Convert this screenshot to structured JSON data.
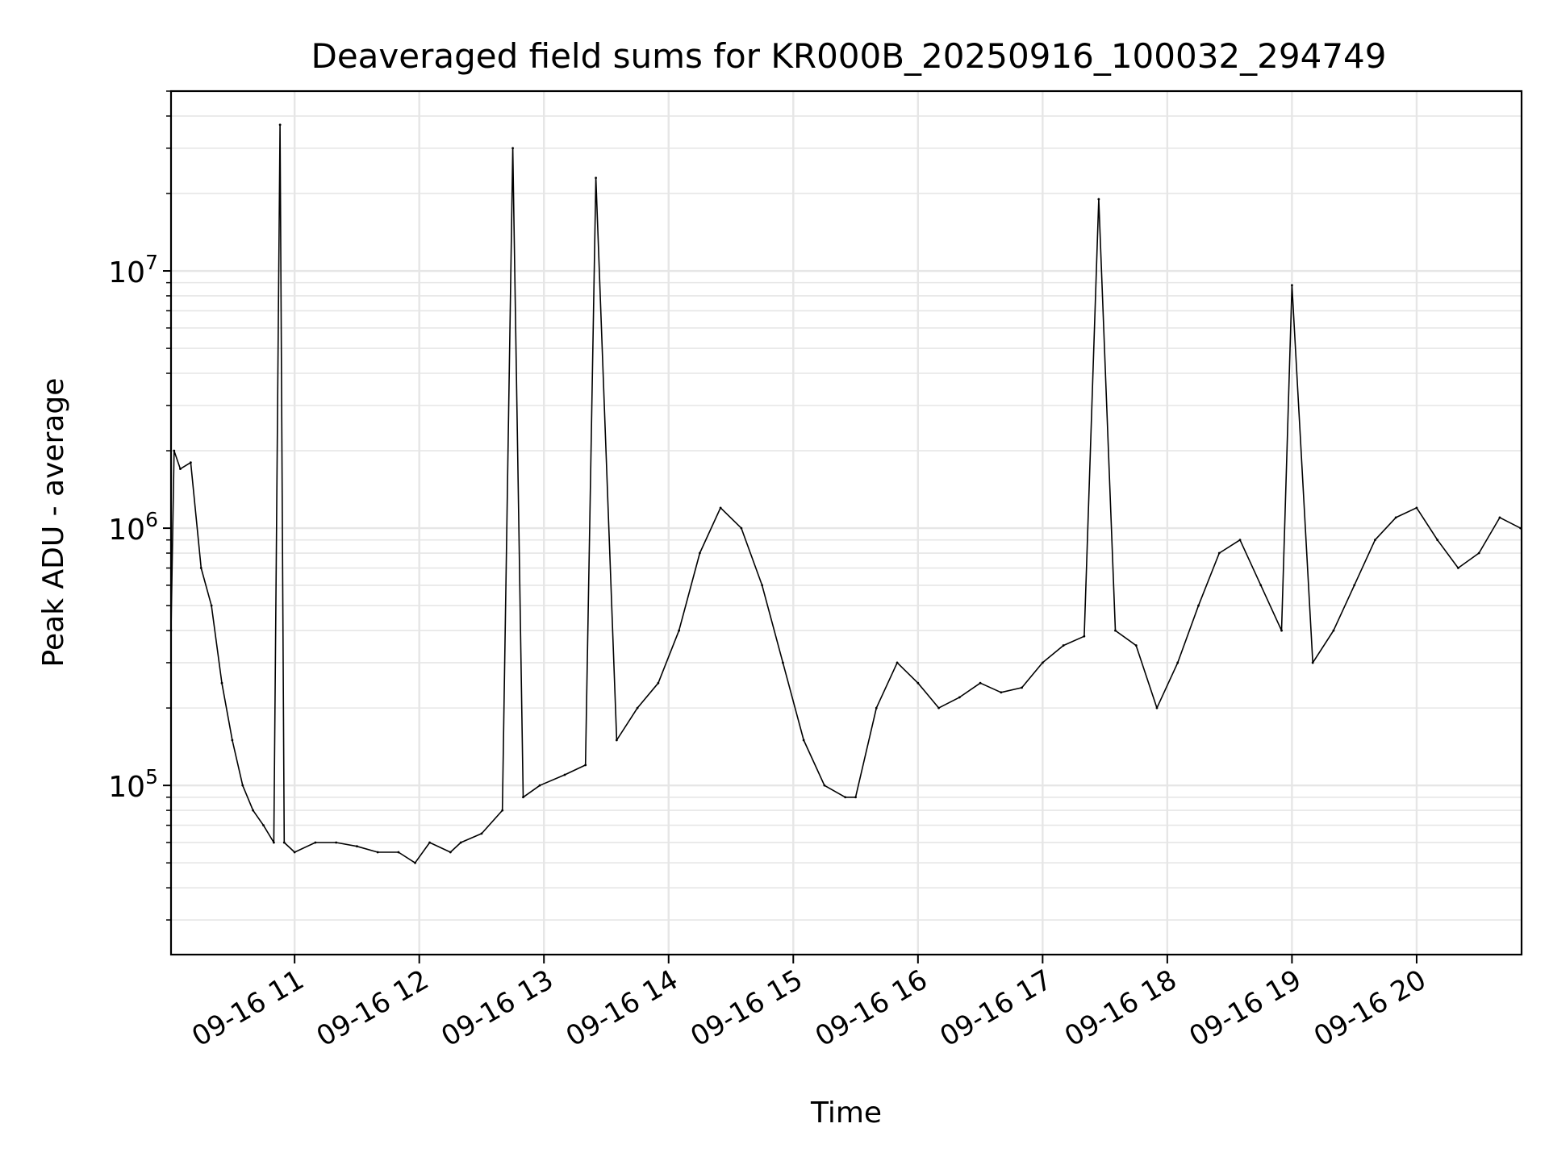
{
  "chart_data": {
    "type": "line",
    "title": "Deaveraged field sums for KR000B_20250916_100032_294749",
    "xlabel": "Time",
    "ylabel": "Peak ADU - average",
    "yscale": "log",
    "ylim": [
      22000,
      50000000
    ],
    "xlim": [
      "2025-09-16 10:00:32",
      "2025-09-16 20:50:30"
    ],
    "grid": true,
    "legend": "none",
    "line_color": "#000000",
    "x_ticks": [
      {
        "t": "2025-09-16 11:00",
        "label": "09-16 11"
      },
      {
        "t": "2025-09-16 12:00",
        "label": "09-16 12"
      },
      {
        "t": "2025-09-16 13:00",
        "label": "09-16 13"
      },
      {
        "t": "2025-09-16 14:00",
        "label": "09-16 14"
      },
      {
        "t": "2025-09-16 15:00",
        "label": "09-16 15"
      },
      {
        "t": "2025-09-16 16:00",
        "label": "09-16 16"
      },
      {
        "t": "2025-09-16 17:00",
        "label": "09-16 17"
      },
      {
        "t": "2025-09-16 18:00",
        "label": "09-16 18"
      },
      {
        "t": "2025-09-16 19:00",
        "label": "09-16 19"
      },
      {
        "t": "2025-09-16 20:00",
        "label": "09-16 20"
      }
    ],
    "y_ticks": [
      {
        "value": 100000,
        "base": "10",
        "exp": "5"
      },
      {
        "value": 1000000,
        "base": "10",
        "exp": "6"
      },
      {
        "value": 10000000,
        "base": "10",
        "exp": "7"
      }
    ],
    "series": [
      {
        "x": [
          "2025-09-16 10:00:32",
          "2025-09-16 10:02",
          "2025-09-16 10:05",
          "2025-09-16 10:10",
          "2025-09-16 10:15",
          "2025-09-16 10:20",
          "2025-09-16 10:25",
          "2025-09-16 10:30",
          "2025-09-16 10:35",
          "2025-09-16 10:40",
          "2025-09-16 10:45",
          "2025-09-16 10:50",
          "2025-09-16 10:53",
          "2025-09-16 10:55",
          "2025-09-16 11:00",
          "2025-09-16 11:10",
          "2025-09-16 11:20",
          "2025-09-16 11:30",
          "2025-09-16 11:40",
          "2025-09-16 11:50",
          "2025-09-16 11:58",
          "2025-09-16 12:05",
          "2025-09-16 12:15",
          "2025-09-16 12:20",
          "2025-09-16 12:30",
          "2025-09-16 12:40",
          "2025-09-16 12:45",
          "2025-09-16 12:50",
          "2025-09-16 12:58",
          "2025-09-16 13:10",
          "2025-09-16 13:20",
          "2025-09-16 13:25",
          "2025-09-16 13:35",
          "2025-09-16 13:45",
          "2025-09-16 13:55",
          "2025-09-16 14:05",
          "2025-09-16 14:15",
          "2025-09-16 14:25",
          "2025-09-16 14:35",
          "2025-09-16 14:45",
          "2025-09-16 14:55",
          "2025-09-16 15:05",
          "2025-09-16 15:15",
          "2025-09-16 15:25",
          "2025-09-16 15:30",
          "2025-09-16 15:40",
          "2025-09-16 15:50",
          "2025-09-16 16:00",
          "2025-09-16 16:10",
          "2025-09-16 16:20",
          "2025-09-16 16:30",
          "2025-09-16 16:40",
          "2025-09-16 16:50",
          "2025-09-16 17:00",
          "2025-09-16 17:10",
          "2025-09-16 17:20",
          "2025-09-16 17:27",
          "2025-09-16 17:35",
          "2025-09-16 17:45",
          "2025-09-16 17:55",
          "2025-09-16 18:05",
          "2025-09-16 18:15",
          "2025-09-16 18:25",
          "2025-09-16 18:35",
          "2025-09-16 18:45",
          "2025-09-16 18:55",
          "2025-09-16 19:00",
          "2025-09-16 19:10",
          "2025-09-16 19:20",
          "2025-09-16 19:30",
          "2025-09-16 19:40",
          "2025-09-16 19:50",
          "2025-09-16 20:00",
          "2025-09-16 20:10",
          "2025-09-16 20:20",
          "2025-09-16 20:30",
          "2025-09-16 20:40",
          "2025-09-16 20:50"
        ],
        "y": [
          400000,
          2000000,
          1700000,
          1800000,
          700000,
          500000,
          250000,
          150000,
          100000,
          80000,
          70000,
          60000,
          37000000,
          60000,
          55000,
          60000,
          60000,
          58000,
          55000,
          55000,
          50000,
          60000,
          55000,
          60000,
          65000,
          80000,
          30000000,
          90000,
          100000,
          110000,
          120000,
          23000000,
          150000,
          200000,
          250000,
          400000,
          800000,
          1200000,
          1000000,
          600000,
          300000,
          150000,
          100000,
          90000,
          90000,
          200000,
          300000,
          250000,
          200000,
          220000,
          250000,
          230000,
          240000,
          300000,
          350000,
          380000,
          19000000,
          400000,
          350000,
          200000,
          300000,
          500000,
          800000,
          900000,
          600000,
          400000,
          8800000,
          300000,
          400000,
          600000,
          900000,
          1100000,
          1200000,
          900000,
          700000,
          800000,
          1100000,
          1000000
        ]
      }
    ]
  }
}
